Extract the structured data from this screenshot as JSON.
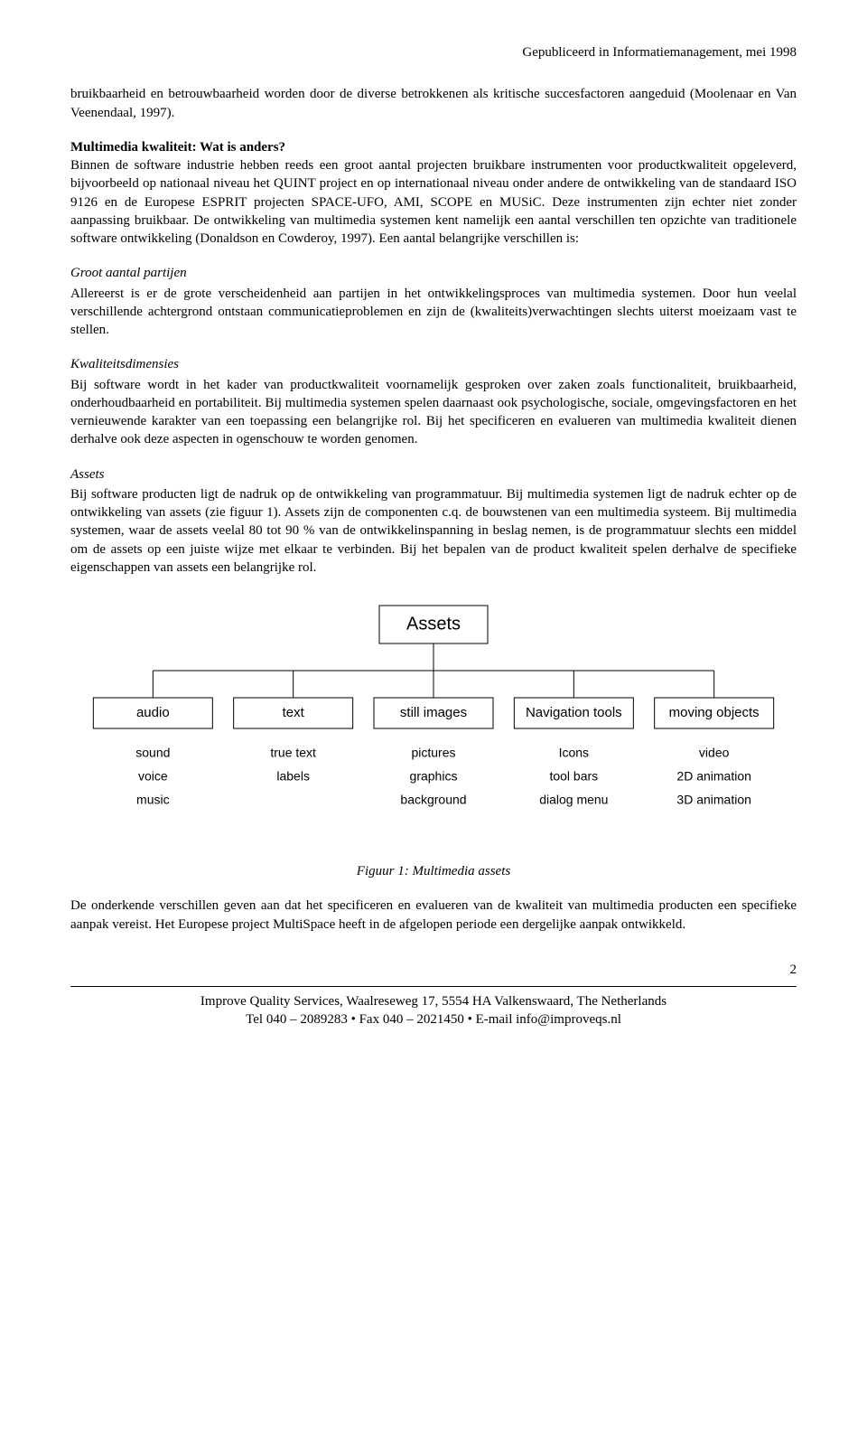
{
  "publication_header": "Gepubliceerd in Informatiemanagement, mei 1998",
  "intro_para": "bruikbaarheid en betrouwbaarheid worden door de diverse betrokkenen als kritische succesfactoren aangeduid (Moolenaar en Van Veenendaal, 1997).",
  "section_heading": "Multimedia kwaliteit: Wat is anders?",
  "para1": "Binnen de software industrie hebben reeds een groot aantal projecten bruikbare instrumenten voor productkwaliteit opgeleverd, bijvoorbeeld op nationaal niveau het QUINT project en op internationaal niveau onder andere de ontwikkeling van de standaard ISO 9126 en de Europese ESPRIT projecten SPACE-UFO, AMI, SCOPE en MUSiC. Deze instrumenten zijn echter niet zonder aanpassing bruikbaar. De ontwikkeling van multimedia systemen kent namelijk een aantal verschillen ten opzichte van traditionele software ontwikkeling (Donaldson en Cowderoy, 1997). Een aantal belangrijke verschillen is:",
  "sub1_head": "Groot aantal partijen",
  "sub1_body": "Allereerst is er de grote verscheidenheid aan partijen in het ontwikkelingsproces van multimedia systemen. Door hun veelal verschillende achtergrond ontstaan communicatieproblemen en zijn de (kwaliteits)verwachtingen slechts uiterst moeizaam vast te stellen.",
  "sub2_head": "Kwaliteitsdimensies",
  "sub2_body": "Bij software wordt in het kader van productkwaliteit voornamelijk gesproken over zaken zoals functionaliteit, bruikbaarheid, onderhoudbaarheid en portabiliteit. Bij multimedia systemen spelen daarnaast ook psychologische, sociale, omgevingsfactoren en het vernieuwende karakter van een toepassing een belangrijke rol. Bij het specificeren en evalueren van multimedia kwaliteit dienen derhalve ook deze aspecten in ogenschouw te worden genomen.",
  "sub3_head": "Assets",
  "sub3_body": "Bij software producten ligt de nadruk op de ontwikkeling van programmatuur. Bij multimedia systemen ligt de nadruk echter op de ontwikkeling van assets (zie figuur 1). Assets zijn de componenten c.q. de bouwstenen van een multimedia systeem. Bij multimedia systemen, waar de assets veelal 80 tot 90 % van de ontwikkelinspanning in beslag nemen, is de programmatuur slechts een middel om de assets op een juiste wijze met elkaar te verbinden. Bij het bepalen van de product kwaliteit spelen derhalve de specifieke eigenschappen van assets een belangrijke rol.",
  "figure_caption": "Figuur 1: Multimedia assets",
  "closing_para": "De onderkende verschillen geven aan dat het specificeren en evalueren van de kwaliteit van multimedia producten een specifieke aanpak vereist. Het Europese project MultiSpace heeft in de afgelopen periode een dergelijke aanpak ontwikkeld.",
  "page_number": "2",
  "footer_line1": "Improve Quality Services, Waalreseweg 17, 5554 HA Valkenswaard, The Netherlands",
  "footer_line2": "Tel 040 – 2089283 • Fax 040 – 2021450 • E-mail info@improveqs.nl",
  "diagram": {
    "type": "tree",
    "background_color": "#ffffff",
    "box_border_color": "#000000",
    "box_fill": "#ffffff",
    "connector_color": "#000000",
    "root_label_font": "Arial, Helvetica, sans-serif",
    "root_label": "Assets",
    "root_fontsize": 20,
    "child_fontsize": 15,
    "leaf_fontsize": 14,
    "children": [
      {
        "label": "audio",
        "leaves": [
          "sound",
          "voice",
          "music"
        ]
      },
      {
        "label": "text",
        "leaves": [
          "true text",
          "labels"
        ]
      },
      {
        "label": "still images",
        "leaves": [
          "pictures",
          "graphics",
          "background"
        ]
      },
      {
        "label": "Navigation tools",
        "leaves": [
          "Icons",
          "tool bars",
          "dialog menu"
        ]
      },
      {
        "label": "moving objects",
        "leaves": [
          "video",
          "2D animation",
          "3D animation"
        ]
      }
    ]
  }
}
